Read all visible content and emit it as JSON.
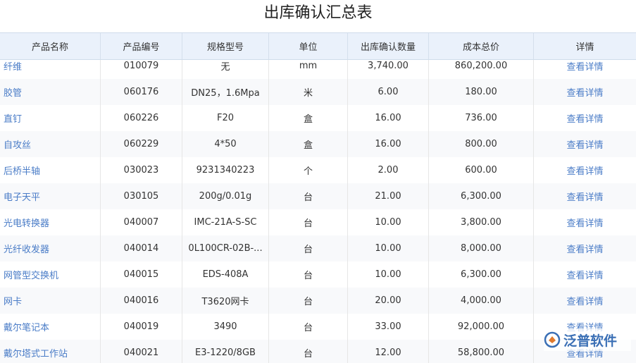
{
  "header": {
    "title": "出库确认汇总表"
  },
  "table": {
    "headers": [
      "产品名称",
      "产品编号",
      "规格型号",
      "单位",
      "出库确认数量",
      "成本总价",
      "详情"
    ],
    "rows": [
      [
        "纤维",
        "010079",
        "无",
        "mm",
        "3,740.00",
        "860,200.00",
        "查看详情"
      ],
      [
        "胶管",
        "060176",
        "DN25，1.6Mpa",
        "米",
        "6.00",
        "180.00",
        "查看详情"
      ],
      [
        "直钉",
        "060226",
        "F20",
        "盒",
        "16.00",
        "736.00",
        "查看详情"
      ],
      [
        "自攻丝",
        "060229",
        "4*50",
        "盒",
        "16.00",
        "800.00",
        "查看详情"
      ],
      [
        "后桥半轴",
        "030023",
        "9231340223",
        "个",
        "2.00",
        "600.00",
        "查看详情"
      ],
      [
        "电子天平",
        "030105",
        "200g/0.01g",
        "台",
        "21.00",
        "6,300.00",
        "查看详情"
      ],
      [
        "光电转换器",
        "040007",
        "IMC-21A-S-SC",
        "台",
        "10.00",
        "3,800.00",
        "查看详情"
      ],
      [
        "光纤收发器",
        "040014",
        "0L100CR-02B-...",
        "台",
        "10.00",
        "8,000.00",
        "查看详情"
      ],
      [
        "网管型交换机",
        "040015",
        "EDS-408A",
        "台",
        "10.00",
        "6,300.00",
        "查看详情"
      ],
      [
        "网卡",
        "040016",
        "T3620网卡",
        "台",
        "20.00",
        "4,000.00",
        "查看详情"
      ],
      [
        "戴尔笔记本",
        "040019",
        "3490",
        "台",
        "33.00",
        "92,000.00",
        "查看详情"
      ],
      [
        "戴尔塔式工作站",
        "040021",
        "E3-1220/8GB",
        "台",
        "12.00",
        "58,800.00",
        "查看详情"
      ]
    ]
  },
  "watermark": {
    "text": "泛普软件"
  }
}
